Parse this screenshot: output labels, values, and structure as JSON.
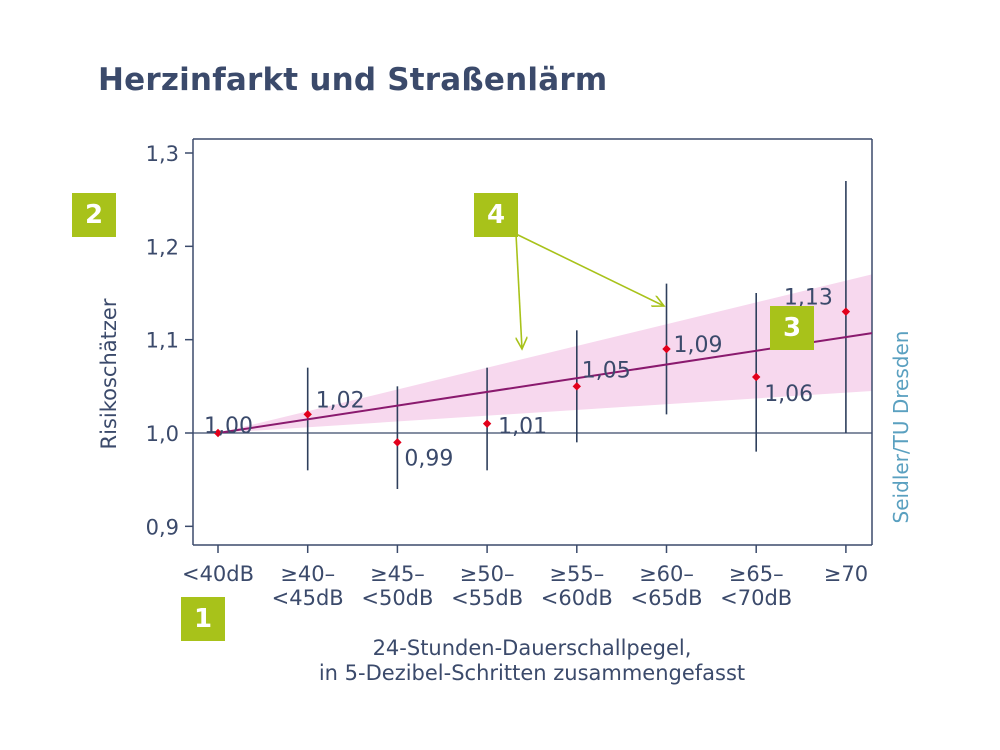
{
  "title": "Herzinfarkt und Straßenlärm",
  "credit": "Seidler/TU Dresden",
  "badges": {
    "one": "1",
    "two": "2",
    "three": "3",
    "four": "4"
  },
  "colors": {
    "text": "#3b4a6b",
    "axis": "#3b4a6b",
    "errorbar": "#2e3f5c",
    "point": "#e3001b",
    "trend": "#8a1a6e",
    "band": "#f7d8ee",
    "badge": "#a8c21a",
    "arrow": "#a8c21a",
    "credit": "#5aa0c0"
  },
  "chart_data": {
    "type": "scatter",
    "title": "Herzinfarkt und Straßenlärm",
    "ylabel": "Risikoschätzer",
    "xlabel_lines": [
      "24-Stunden-Dauerschallpegel,",
      "in 5-Dezibel-Schritten zusammengefasst"
    ],
    "categories": [
      [
        "<40dB"
      ],
      [
        "≥40–",
        "<45dB"
      ],
      [
        "≥45–",
        "<50dB"
      ],
      [
        "≥50–",
        "<55dB"
      ],
      [
        "≥55–",
        "<60dB"
      ],
      [
        "≥60–",
        "<65dB"
      ],
      [
        "≥65–",
        "<70dB"
      ],
      [
        "≥70"
      ]
    ],
    "values": [
      1.0,
      1.02,
      0.99,
      1.01,
      1.05,
      1.09,
      1.06,
      1.13
    ],
    "value_labels": [
      "1,00",
      "1,02",
      "0,99",
      "1,01",
      "1,05",
      "1,09",
      "1,06",
      "1,13"
    ],
    "ci_lower": [
      1.0,
      0.96,
      0.94,
      0.96,
      0.99,
      1.02,
      0.98,
      1.0
    ],
    "ci_upper": [
      1.0,
      1.07,
      1.05,
      1.07,
      1.11,
      1.16,
      1.15,
      1.27
    ],
    "trend": {
      "start": 1.0,
      "end": 1.107
    },
    "trend_band": {
      "start": 1.0,
      "upper_end": 1.17,
      "lower_end": 1.045
    },
    "reference_line": 1.0,
    "ylim": [
      0.88,
      1.315
    ],
    "yticks": [
      0.9,
      1.0,
      1.1,
      1.2,
      1.3
    ],
    "ytick_labels": [
      "0,9",
      "1,0",
      "1,1",
      "1,2",
      "1,3"
    ],
    "grid": false,
    "legend": "none"
  }
}
